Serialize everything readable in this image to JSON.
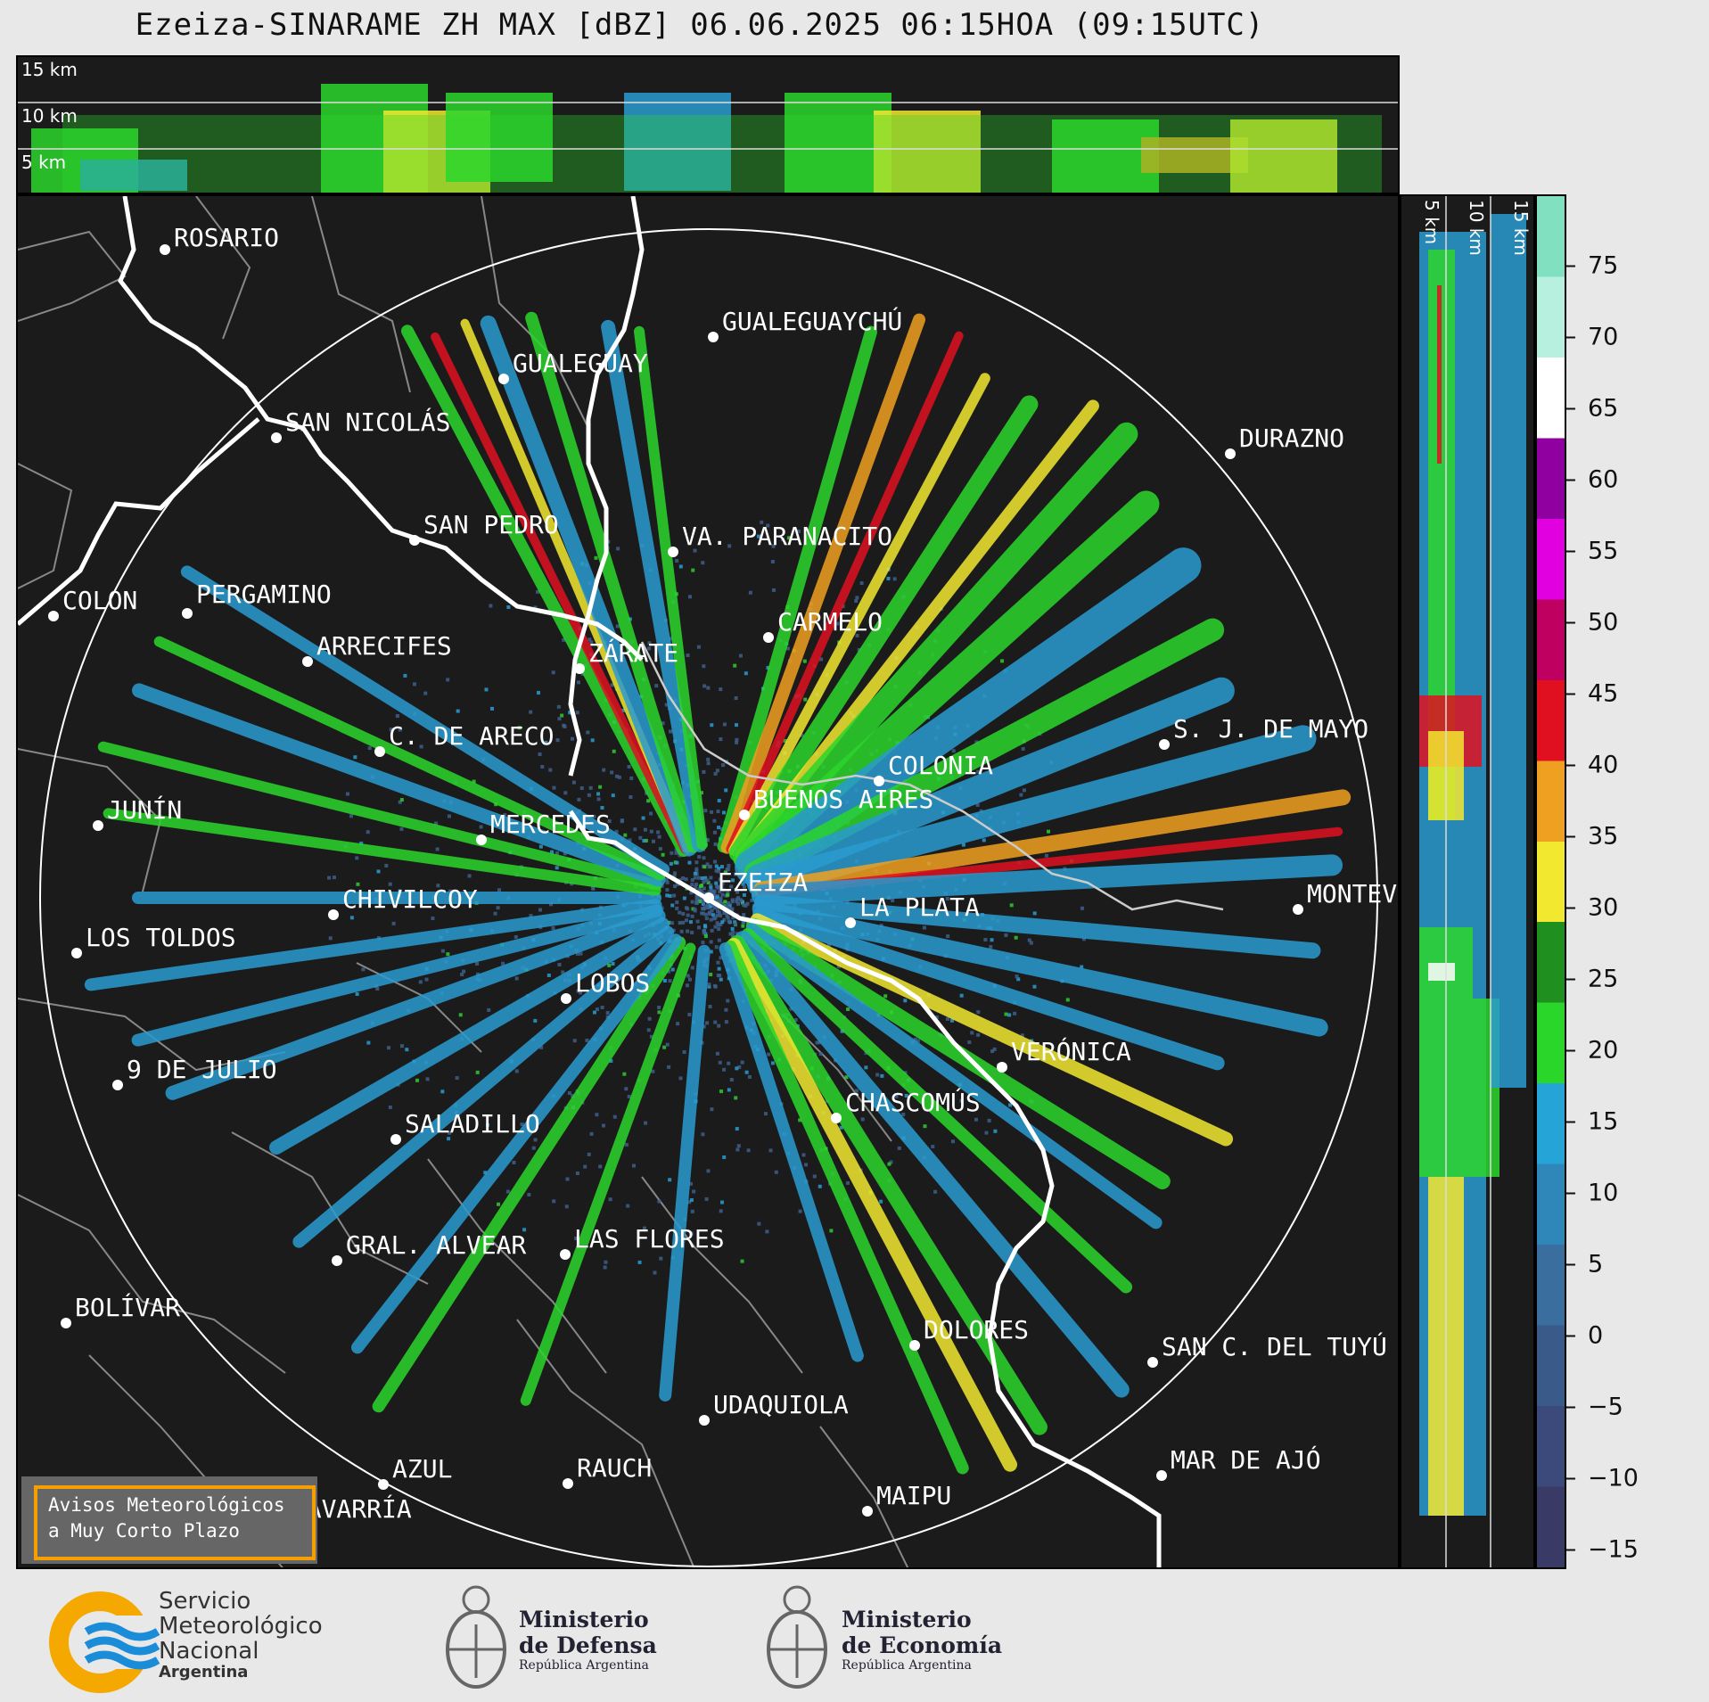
{
  "title": "Ezeiza-SINARAME ZH MAX [dBZ] 06.06.2025 06:15HOA (09:15UTC)",
  "top_panel": {
    "km_labels": [
      "15 km",
      "10 km",
      "5 km"
    ]
  },
  "side_panel": {
    "km_labels": [
      "5 km",
      "10 km",
      "15 km"
    ]
  },
  "colorbar": {
    "unit": "dBZ",
    "ticks": [
      "75",
      "70",
      "65",
      "60",
      "55",
      "50",
      "45",
      "40",
      "35",
      "30",
      "25",
      "20",
      "15",
      "10",
      "5",
      "0",
      "−5",
      "−10",
      "−15"
    ],
    "range": [
      -20,
      77.5
    ],
    "colors": [
      "#3a3a66",
      "#3b4a7a",
      "#3a5a8a",
      "#3a6e9e",
      "#2f86b8",
      "#25a4d8",
      "#2bd62b",
      "#1f8f1f",
      "#f2e830",
      "#f0a020",
      "#e01020",
      "#c00060",
      "#e000e0",
      "#9000a0",
      "#ffffff",
      "#b8f0e0",
      "#80e0c0"
    ]
  },
  "cities": [
    {
      "name": "ROSARIO"
    },
    {
      "name": "GUALEGUAYCHÚ"
    },
    {
      "name": "GUALEGUAY"
    },
    {
      "name": "SAN NICOLÁS"
    },
    {
      "name": "DURAZNO"
    },
    {
      "name": "SAN PEDRO"
    },
    {
      "name": "VA. PARANACITO"
    },
    {
      "name": "COLON"
    },
    {
      "name": "PERGAMINO"
    },
    {
      "name": "CARMELO"
    },
    {
      "name": "ARRECIFES"
    },
    {
      "name": "ZÁRATE"
    },
    {
      "name": "S. J. DE MAYO"
    },
    {
      "name": "C. DE ARECO"
    },
    {
      "name": "COLONIA"
    },
    {
      "name": "JUNÍN"
    },
    {
      "name": "BUENOS AIRES"
    },
    {
      "name": "MERCEDES"
    },
    {
      "name": "EZEIZA"
    },
    {
      "name": "MONTEVIDEO"
    },
    {
      "name": "CHIVILCOY"
    },
    {
      "name": "LA PLATA"
    },
    {
      "name": "LOS TOLDOS"
    },
    {
      "name": "LOBOS"
    },
    {
      "name": "VERÓNICA"
    },
    {
      "name": "9 DE JULIO"
    },
    {
      "name": "CHASCOMÚS"
    },
    {
      "name": "SALADILLO"
    },
    {
      "name": "GRAL. ALVEAR"
    },
    {
      "name": "LAS FLORES"
    },
    {
      "name": "BOLÍVAR"
    },
    {
      "name": "DOLORES"
    },
    {
      "name": "SAN C. DEL TUYÚ"
    },
    {
      "name": "UDAQUIOLA"
    },
    {
      "name": "MAR DE AJÓ"
    },
    {
      "name": "AZUL"
    },
    {
      "name": "RAUCH"
    },
    {
      "name": "MAIPU"
    },
    {
      "name": "OLAVARRÍA"
    }
  ],
  "warning_box": {
    "line1": "Avisos Meteorológicos",
    "line2": "a Muy Corto Plazo"
  },
  "footer": {
    "smn": {
      "line1": "Servicio",
      "line2": "Meteorológico",
      "line3": "Nacional",
      "line4": "Argentina"
    },
    "defensa": {
      "line1": "Ministerio",
      "line2": "de Defensa",
      "line3": "República Argentina"
    },
    "economia": {
      "line1": "Ministerio",
      "line2": "de Economía",
      "line3": "República Argentina"
    }
  }
}
